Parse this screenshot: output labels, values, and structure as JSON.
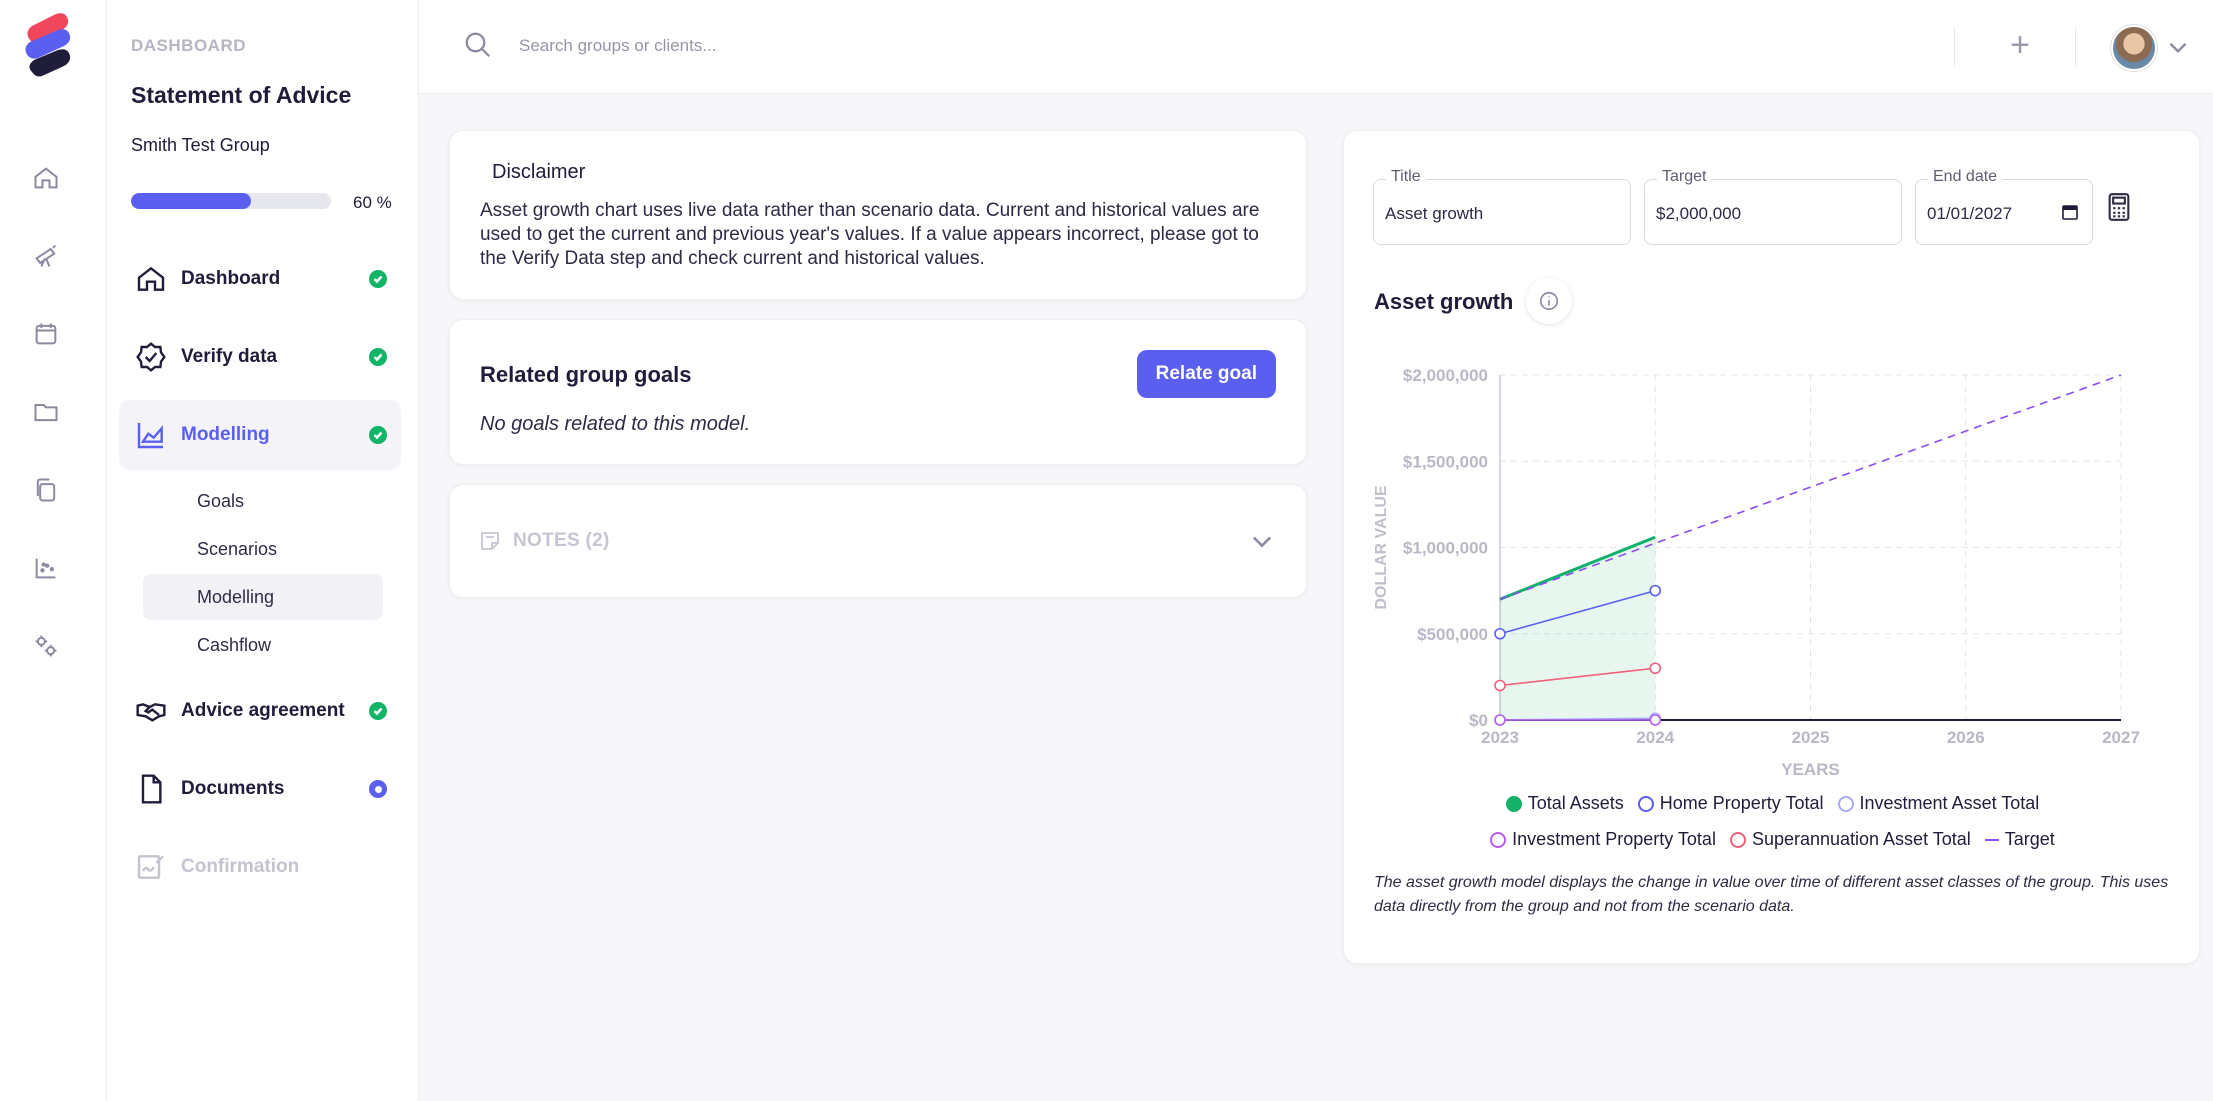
{
  "search": {
    "placeholder": "Search groups or clients..."
  },
  "sidebar": {
    "eyebrow": "DASHBOARD",
    "title": "Statement of Advice",
    "group": "Smith Test Group",
    "progress": {
      "value": 60,
      "label": "60 %"
    },
    "steps": [
      {
        "label": "Dashboard",
        "status": "done"
      },
      {
        "label": "Verify data",
        "status": "done"
      },
      {
        "label": "Modelling",
        "status": "done",
        "active": true
      },
      {
        "label": "Advice agreement",
        "status": "done"
      },
      {
        "label": "Documents",
        "status": "current"
      },
      {
        "label": "Confirmation",
        "status": "disabled"
      }
    ],
    "substeps": [
      "Goals",
      "Scenarios",
      "Modelling",
      "Cashflow"
    ]
  },
  "disclaimer": {
    "title": "Disclaimer",
    "text": "Asset growth chart uses live data rather than scenario data. Current and historical values are used to get the current and previous year's values. If a value appears incorrect, please got to the Verify Data step and check current and historical values."
  },
  "goals": {
    "title": "Related group goals",
    "button": "Relate goal",
    "empty": "No goals related to this model."
  },
  "notes": {
    "label": "NOTES (2)"
  },
  "model": {
    "fields": {
      "title": {
        "label": "Title",
        "value": "Asset growth"
      },
      "target": {
        "label": "Target",
        "value": "$2,000,000"
      },
      "end_date": {
        "label": "End date",
        "value": "01/01/2027"
      }
    },
    "chart_title": "Asset growth",
    "footnote": "The asset growth model displays the change in value over time of different asset classes of the group. This uses data directly from the group and not from the scenario data."
  },
  "chart_data": {
    "type": "line",
    "title": "Asset growth",
    "xlabel": "YEARS",
    "ylabel": "DOLLAR VALUE",
    "x": [
      2023,
      2024,
      2025,
      2026,
      2027
    ],
    "x_ticks": [
      "2023",
      "2024",
      "2025",
      "2026",
      "2027"
    ],
    "y_ticks": [
      "$0",
      "$500,000",
      "$1,000,000",
      "$1,500,000",
      "$2,000,000"
    ],
    "ylim": [
      0,
      2000000
    ],
    "grid": true,
    "legend_position": "bottom",
    "series": [
      {
        "name": "Total Assets",
        "color": "#12b26b",
        "marker": "filled",
        "area": true,
        "x": [
          2023,
          2024
        ],
        "values": [
          700000,
          1060000
        ]
      },
      {
        "name": "Home Property Total",
        "color": "#5a5ff0",
        "marker": "hollow",
        "x": [
          2023,
          2024
        ],
        "values": [
          500000,
          750000
        ]
      },
      {
        "name": "Investment Asset Total",
        "color": "#a9aaf5",
        "marker": "hollow",
        "x": [
          2023,
          2024
        ],
        "values": [
          0,
          10000
        ]
      },
      {
        "name": "Investment Property Total",
        "color": "#b65cf0",
        "marker": "hollow",
        "x": [
          2023,
          2024
        ],
        "values": [
          0,
          0
        ]
      },
      {
        "name": "Superannuation Asset Total",
        "color": "#f0607a",
        "marker": "hollow",
        "x": [
          2023,
          2024
        ],
        "values": [
          200000,
          300000
        ]
      },
      {
        "name": "Target",
        "color": "#8b4cf0",
        "marker": "line",
        "dashed": true,
        "x": [
          2023,
          2027
        ],
        "values": [
          700000,
          2000000
        ]
      }
    ]
  },
  "colors": {
    "accent": "#5a5ff0",
    "success": "#10b567"
  }
}
